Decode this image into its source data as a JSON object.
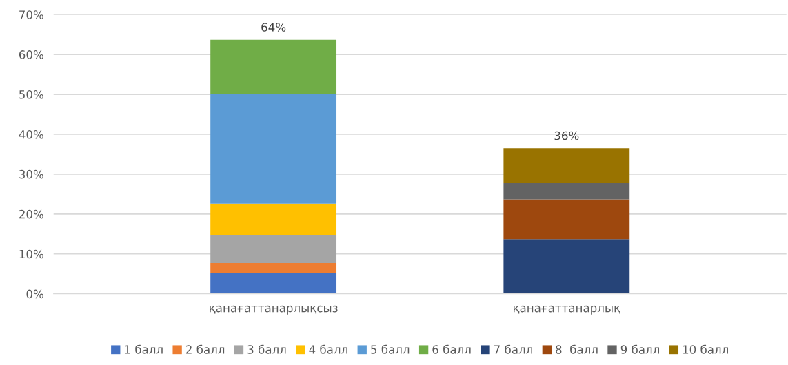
{
  "chart_data": {
    "type": "bar",
    "stacked": true,
    "categories": [
      "қанағаттанарлықсыз",
      "қанағаттанарлық"
    ],
    "series": [
      {
        "name": "1 балл",
        "color": "#4472c4",
        "values": [
          5.2,
          null
        ]
      },
      {
        "name": "2 балл",
        "color": "#ed7d31",
        "values": [
          2.5,
          null
        ]
      },
      {
        "name": "3 балл",
        "color": "#a5a5a5",
        "values": [
          7.1,
          null
        ]
      },
      {
        "name": "4 балл",
        "color": "#ffc000",
        "values": [
          7.8,
          null
        ]
      },
      {
        "name": "5 балл",
        "color": "#5b9bd5",
        "values": [
          27.4,
          null
        ]
      },
      {
        "name": "6 балл",
        "color": "#70ad47",
        "values": [
          13.7,
          null
        ]
      },
      {
        "name": "7 балл",
        "color": "#264478",
        "values": [
          null,
          13.7
        ]
      },
      {
        "name": "8  балл",
        "color": "#9e480e",
        "values": [
          null,
          10.0
        ]
      },
      {
        "name": "9 балл",
        "color": "#636363",
        "values": [
          null,
          4.1
        ]
      },
      {
        "name": "10 балл",
        "color": "#997300",
        "values": [
          null,
          8.7
        ]
      }
    ],
    "totals": [
      "64%",
      "36%"
    ],
    "ylim": [
      0,
      70
    ],
    "yticks": [
      {
        "value": 0,
        "label": "0%"
      },
      {
        "value": 10,
        "label": "10%"
      },
      {
        "value": 20,
        "label": "20%"
      },
      {
        "value": 30,
        "label": "30%"
      },
      {
        "value": 40,
        "label": "40%"
      },
      {
        "value": 50,
        "label": "50%"
      },
      {
        "value": 60,
        "label": "60%"
      },
      {
        "value": 70,
        "label": "70%"
      }
    ],
    "grid": "y",
    "legend": "bottom"
  }
}
